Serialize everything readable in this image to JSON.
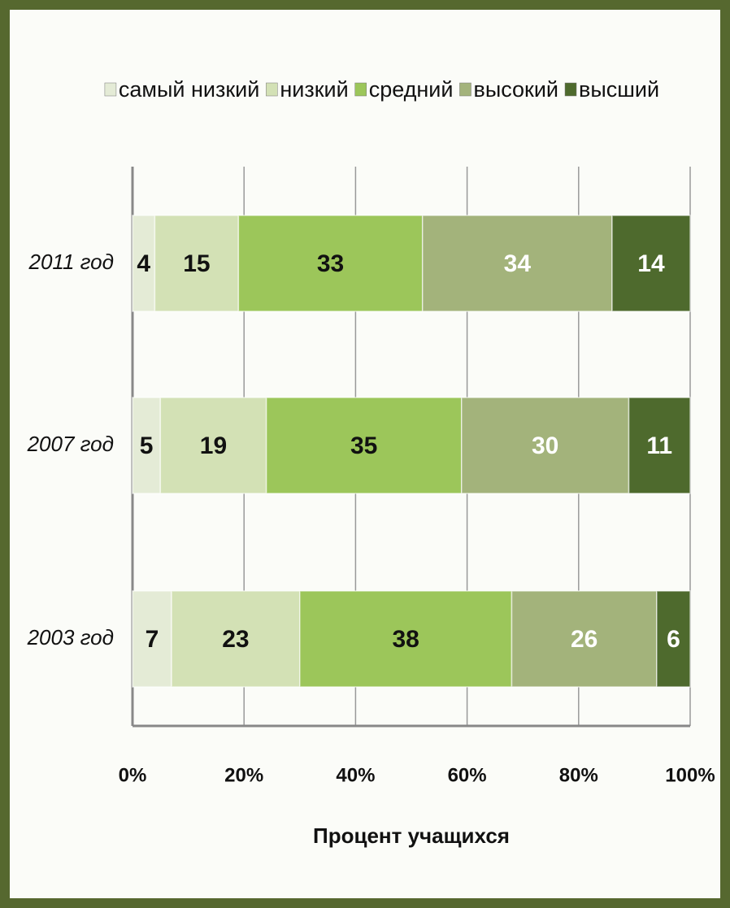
{
  "chart_data": {
    "type": "stacked-barh",
    "categories": [
      "2011 год",
      "2007 год",
      "2003 год"
    ],
    "series": [
      {
        "name": "самый низкий",
        "color": "#e4ebd6",
        "values": [
          4,
          5,
          7
        ]
      },
      {
        "name": "низкий",
        "color": "#d3e1b5",
        "values": [
          15,
          19,
          23
        ]
      },
      {
        "name": "средний",
        "color": "#9cc65a",
        "values": [
          33,
          35,
          38
        ]
      },
      {
        "name": "высокий",
        "color": "#a3b37b",
        "values": [
          34,
          30,
          26
        ]
      },
      {
        "name": "высший",
        "color": "#4e6a2d",
        "values": [
          14,
          11,
          6
        ]
      }
    ],
    "xlim": [
      0,
      100
    ],
    "xticks": [
      {
        "value": 0,
        "label": "0%"
      },
      {
        "value": 20,
        "label": "20%"
      },
      {
        "value": 40,
        "label": "40%"
      },
      {
        "value": 60,
        "label": "60%"
      },
      {
        "value": 80,
        "label": "80%"
      },
      {
        "value": 100,
        "label": "100%"
      }
    ],
    "xlabel": "Процент учащихся",
    "grid": true,
    "legend": "top"
  }
}
